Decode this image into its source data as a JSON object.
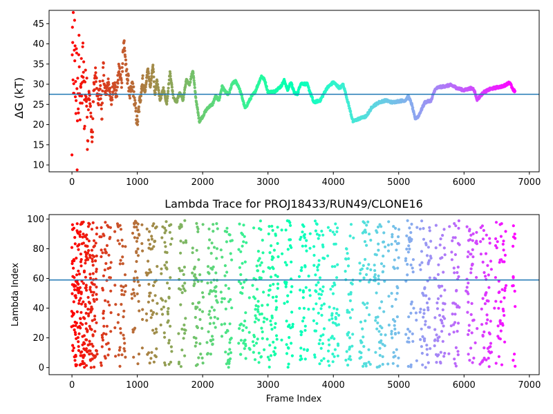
{
  "chart_data": [
    {
      "type": "scatter",
      "title": "",
      "xlabel": "",
      "ylabel": "ΔG (kT)",
      "xlim": [
        -350,
        7150
      ],
      "ylim": [
        8.3,
        48.3
      ],
      "xticks": [
        0,
        1000,
        2000,
        3000,
        4000,
        5000,
        6000,
        7000
      ],
      "xtick_labels": [
        "0",
        "1000",
        "2000",
        "3000",
        "4000",
        "5000",
        "6000",
        "7000"
      ],
      "yticks": [
        10,
        15,
        20,
        25,
        30,
        35,
        40,
        45
      ],
      "ytick_labels": [
        "10",
        "15",
        "20",
        "25",
        "30",
        "35",
        "40",
        "45"
      ],
      "colormap": "rainbow_r",
      "color_by": "frame index (red at frame 0, violet at last frame)",
      "hline": 27.5,
      "hline_color": "#1f77b4",
      "grid": false,
      "legend": "none",
      "x_range": [
        0,
        6780
      ],
      "trace_points": [
        [
          0,
          10
        ],
        [
          5,
          48
        ],
        [
          10,
          38
        ],
        [
          15,
          24
        ],
        [
          20,
          45
        ],
        [
          25,
          30
        ],
        [
          30,
          20
        ],
        [
          40,
          42
        ],
        [
          50,
          33
        ],
        [
          60,
          27
        ],
        [
          70,
          36
        ],
        [
          80,
          15
        ],
        [
          90,
          31
        ],
        [
          100,
          25
        ],
        [
          110,
          39
        ],
        [
          120,
          22
        ],
        [
          130,
          33
        ],
        [
          150,
          27
        ],
        [
          170,
          36
        ],
        [
          190,
          24
        ],
        [
          210,
          31
        ],
        [
          240,
          20
        ],
        [
          260,
          29
        ],
        [
          290,
          22
        ],
        [
          310,
          15
        ],
        [
          330,
          28
        ],
        [
          360,
          33
        ],
        [
          400,
          25
        ],
        [
          430,
          30
        ],
        [
          460,
          22
        ],
        [
          480,
          35
        ],
        [
          510,
          27
        ],
        [
          560,
          31
        ],
        [
          600,
          25
        ],
        [
          640,
          31
        ],
        [
          680,
          27
        ],
        [
          720,
          34
        ],
        [
          760,
          30
        ],
        [
          780,
          38
        ],
        [
          800,
          40.5
        ],
        [
          830,
          33
        ],
        [
          860,
          31
        ],
        [
          890,
          27
        ],
        [
          930,
          30
        ],
        [
          970,
          24
        ],
        [
          1000,
          20.2
        ],
        [
          1040,
          26
        ],
        [
          1080,
          31
        ],
        [
          1120,
          28
        ],
        [
          1160,
          34
        ],
        [
          1200,
          29
        ],
        [
          1240,
          35
        ],
        [
          1270,
          27
        ],
        [
          1300,
          31
        ],
        [
          1350,
          26
        ],
        [
          1400,
          29
        ],
        [
          1450,
          25
        ],
        [
          1500,
          33
        ],
        [
          1550,
          27
        ],
        [
          1600,
          25.5
        ],
        [
          1650,
          28
        ],
        [
          1700,
          26
        ],
        [
          1750,
          31
        ],
        [
          1800,
          30
        ],
        [
          1850,
          33.5
        ],
        [
          1900,
          26
        ],
        [
          1950,
          20.8
        ],
        [
          2000,
          22
        ],
        [
          2050,
          23.5
        ],
        [
          2100,
          24.5
        ],
        [
          2150,
          25
        ],
        [
          2200,
          27
        ],
        [
          2250,
          26
        ],
        [
          2300,
          29.5
        ],
        [
          2350,
          28
        ],
        [
          2400,
          27.5
        ],
        [
          2450,
          30
        ],
        [
          2500,
          30.8
        ],
        [
          2550,
          29.5
        ],
        [
          2600,
          27
        ],
        [
          2650,
          24
        ],
        [
          2700,
          25.5
        ],
        [
          2750,
          27
        ],
        [
          2800,
          28
        ],
        [
          2850,
          30
        ],
        [
          2900,
          32
        ],
        [
          2950,
          31
        ],
        [
          3000,
          28
        ],
        [
          3100,
          28.2
        ],
        [
          3200,
          29.5
        ],
        [
          3250,
          31
        ],
        [
          3300,
          28.5
        ],
        [
          3350,
          30.5
        ],
        [
          3400,
          28
        ],
        [
          3450,
          27.5
        ],
        [
          3500,
          30.2
        ],
        [
          3600,
          30
        ],
        [
          3700,
          25.5
        ],
        [
          3800,
          26
        ],
        [
          3900,
          29
        ],
        [
          4000,
          30.5
        ],
        [
          4100,
          29
        ],
        [
          4150,
          30
        ],
        [
          4200,
          27
        ],
        [
          4300,
          20.8
        ],
        [
          4400,
          21.5
        ],
        [
          4500,
          22
        ],
        [
          4600,
          24.5
        ],
        [
          4700,
          25.5
        ],
        [
          4800,
          26
        ],
        [
          4900,
          25.5
        ],
        [
          5000,
          25.8
        ],
        [
          5100,
          26
        ],
        [
          5150,
          27
        ],
        [
          5200,
          25
        ],
        [
          5250,
          21.5
        ],
        [
          5300,
          22
        ],
        [
          5400,
          25.5
        ],
        [
          5500,
          26
        ],
        [
          5550,
          28.5
        ],
        [
          5600,
          29.2
        ],
        [
          5700,
          29.5
        ],
        [
          5800,
          29.8
        ],
        [
          5900,
          29
        ],
        [
          6000,
          28.5
        ],
        [
          6100,
          29
        ],
        [
          6150,
          28.8
        ],
        [
          6200,
          26.2
        ],
        [
          6300,
          28
        ],
        [
          6400,
          28.8
        ],
        [
          6500,
          29.2
        ],
        [
          6600,
          29.5
        ],
        [
          6700,
          30.5
        ],
        [
          6750,
          28.5
        ],
        [
          6780,
          28.3
        ]
      ]
    },
    {
      "type": "scatter",
      "title": "Lambda Trace for PROJ18433/RUN49/CLONE16",
      "xlabel": "Frame Index",
      "ylabel": "Lambda Index",
      "xlim": [
        -350,
        7150
      ],
      "ylim": [
        -4.8,
        103
      ],
      "xticks": [
        0,
        1000,
        2000,
        3000,
        4000,
        5000,
        6000,
        7000
      ],
      "xtick_labels": [
        "0",
        "1000",
        "2000",
        "3000",
        "4000",
        "5000",
        "6000",
        "7000"
      ],
      "yticks": [
        0,
        20,
        40,
        60,
        80,
        100
      ],
      "ytick_labels": [
        "0",
        "20",
        "40",
        "60",
        "80",
        "100"
      ],
      "colormap": "rainbow_r",
      "color_by": "frame index (red at frame 0, violet at last frame)",
      "hline": 59,
      "hline_color": "#1f77b4",
      "grid": false,
      "legend": "none",
      "x_range": [
        0,
        6780
      ],
      "y_range": [
        0,
        99
      ]
    }
  ]
}
